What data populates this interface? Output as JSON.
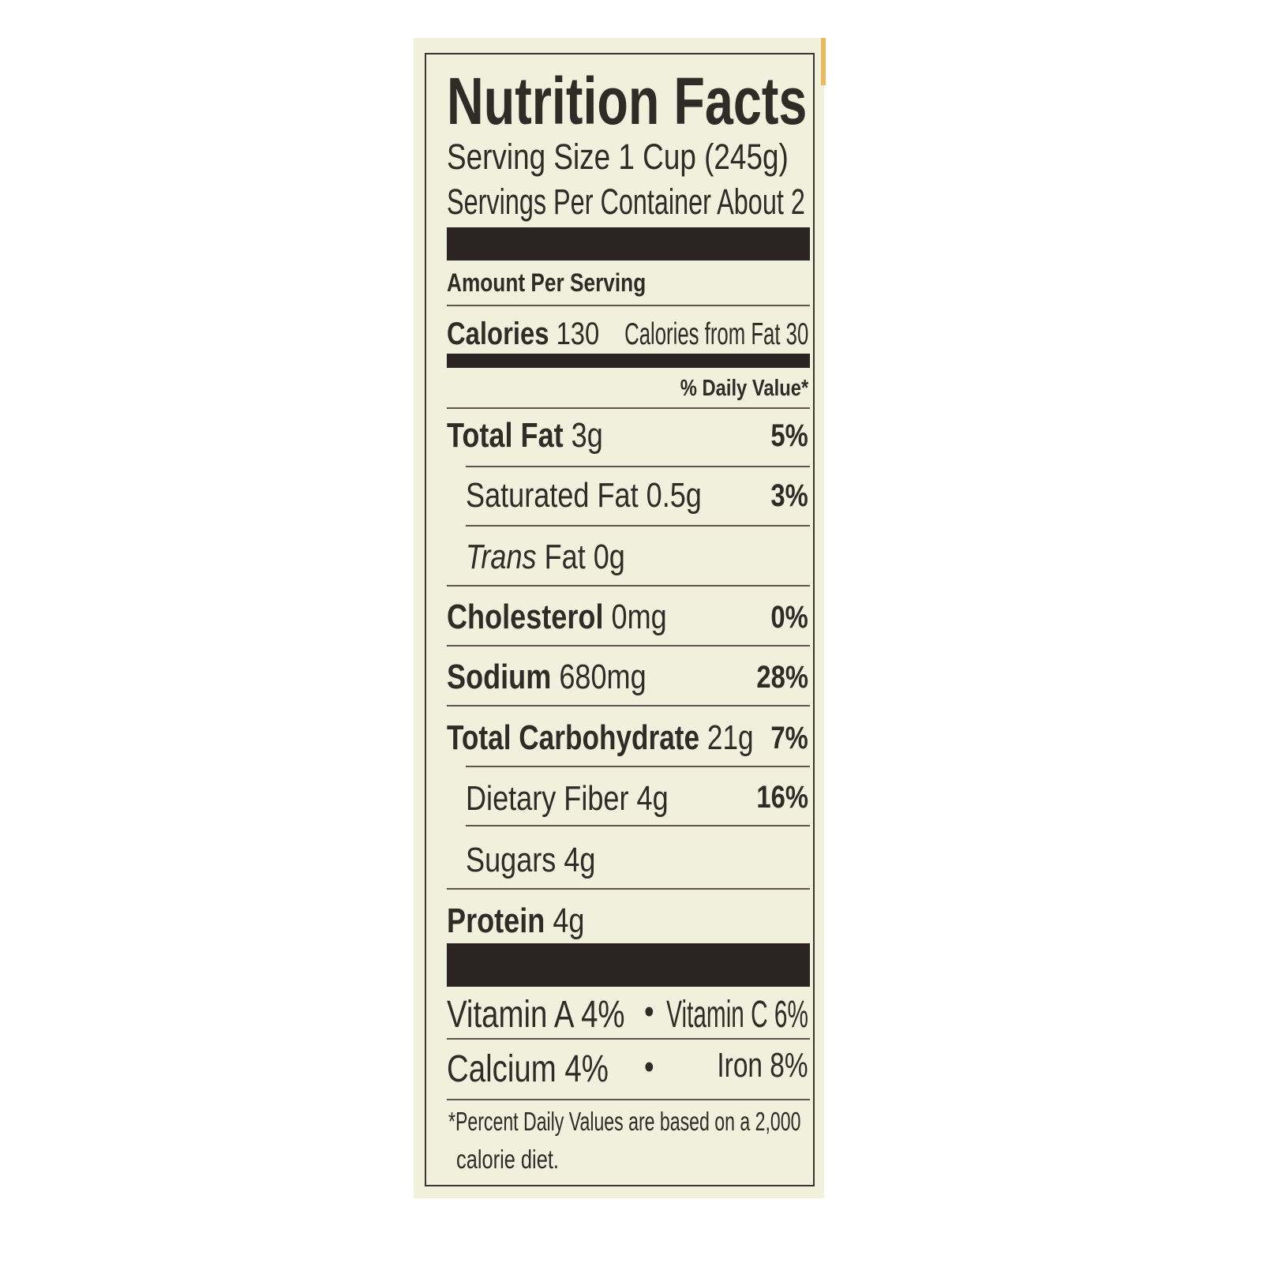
{
  "label": {
    "title": "Nutrition Facts",
    "serving_size": "Serving Size 1 Cup (245g)",
    "servings_per_container": "Servings Per Container About 2",
    "amount_per_serving": "Amount Per Serving",
    "calories_label": "Calories",
    "calories_value": "130",
    "calories_from_fat": "Calories from Fat 30",
    "daily_value_header": "% Daily Value*",
    "nutrients": [
      {
        "name": "Total Fat",
        "amount": "3g",
        "dv": "5%"
      },
      {
        "name": "Saturated Fat",
        "amount": "0.5g",
        "dv": "3%"
      },
      {
        "name": "Trans",
        "suffix": "Fat 0g"
      },
      {
        "name": "Cholesterol",
        "amount": "0mg",
        "dv": "0%"
      },
      {
        "name": "Sodium",
        "amount": "680mg",
        "dv": "28%"
      },
      {
        "name": "Total Carbohydrate",
        "amount": "21g",
        "dv": "7%"
      },
      {
        "name": "Dietary Fiber",
        "amount": "4g",
        "dv": "16%"
      },
      {
        "name": "Sugars",
        "amount": "4g"
      },
      {
        "name": "Protein",
        "amount": "4g"
      }
    ],
    "vitamins": {
      "vitamin_a": "Vitamin A 4%",
      "vitamin_c": "Vitamin C 6%",
      "calcium": "Calcium 4%",
      "iron": "Iron 8%",
      "bullet": "•"
    },
    "footnote_line1": "*Percent Daily Values are based on a 2,000",
    "footnote_line2": "calorie diet."
  }
}
